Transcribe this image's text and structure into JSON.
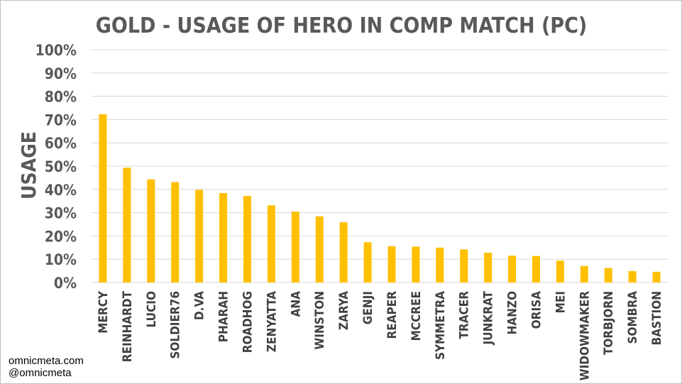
{
  "chart_data": {
    "type": "bar",
    "title": "GOLD - USAGE OF HERO IN COMP MATCH (PC)",
    "xlabel": "",
    "ylabel": "USAGE",
    "ylim": [
      0,
      100
    ],
    "yticks": [
      "0%",
      "10%",
      "20%",
      "30%",
      "40%",
      "50%",
      "60%",
      "70%",
      "80%",
      "90%",
      "100%"
    ],
    "grid": true,
    "bar_color": "#FFC000",
    "categories": [
      "MERCY",
      "REINHARDT",
      "LUCIO",
      "SOLDIER76",
      "D.VA",
      "PHARAH",
      "ROADHOG",
      "ZENYATTA",
      "ANA",
      "WINSTON",
      "ZARYA",
      "GENJI",
      "REAPER",
      "MCCREE",
      "SYMMETRA",
      "TRACER",
      "JUNKRAT",
      "HANZO",
      "ORISA",
      "MEI",
      "WIDOWMAKER",
      "TORBJORN",
      "SOMBRA",
      "BASTION"
    ],
    "values": [
      72.3,
      49.3,
      44.3,
      43.1,
      39.8,
      38.4,
      37.2,
      33.1,
      30.5,
      28.4,
      25.9,
      17.3,
      15.6,
      15.4,
      15.0,
      14.2,
      12.8,
      11.5,
      11.4,
      9.4,
      7.1,
      6.2,
      4.9,
      4.6
    ]
  },
  "credits": {
    "site": "omnicmeta.com",
    "handle": "@omnicmeta"
  }
}
